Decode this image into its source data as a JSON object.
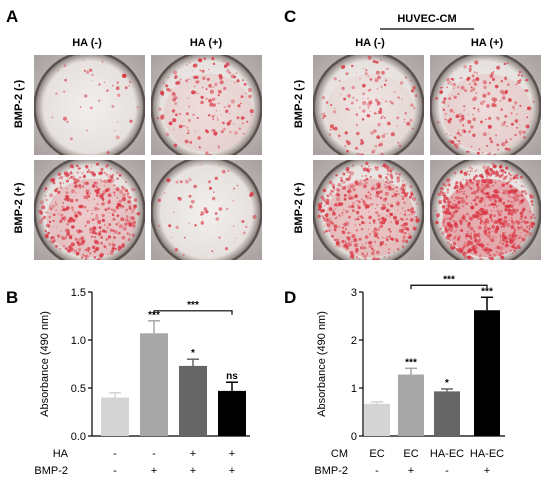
{
  "panels": {
    "A": "A",
    "B": "B",
    "C": "C",
    "D": "D"
  },
  "photo_grid_A": {
    "col_headers": [
      "HA (-)",
      "HA (+)"
    ],
    "row_headers": [
      "BMP-2 (-)",
      "BMP-2 (+)"
    ]
  },
  "photo_grid_C": {
    "group_header": "HUVEC-CM",
    "col_headers": [
      "HA (-)",
      "HA (+)"
    ],
    "row_headers": [
      "BMP-2 (-)",
      "BMP-2 (+)"
    ]
  },
  "colors": {
    "stain_red": "#d9323f",
    "well_bg": "#ede9e6",
    "bar_light": "#d4d4d4",
    "bar_mid": "#a7a7a7",
    "bar_dark": "#666666",
    "bar_black": "#000000"
  },
  "chart_data": [
    {
      "type": "bar",
      "panel": "B",
      "ylabel": "Absorbance (490 nm)",
      "ylim": [
        0,
        1.5
      ],
      "yticks": [
        "0.0",
        "0.5",
        "1.0",
        "1.5"
      ],
      "values": [
        0.4,
        1.07,
        0.73,
        0.47
      ],
      "errors": [
        0.05,
        0.13,
        0.07,
        0.09
      ],
      "bar_colors": [
        "#d4d4d4",
        "#a7a7a7",
        "#666666",
        "#000000"
      ],
      "significance": [
        "",
        "***",
        "*",
        "ns"
      ],
      "bracket": {
        "from": 1,
        "to": 3,
        "label": "***"
      },
      "row_labels": [
        {
          "name": "HA",
          "values": [
            "-",
            "-",
            "+",
            "+"
          ]
        },
        {
          "name": "BMP-2",
          "values": [
            "-",
            "+",
            "+",
            "+"
          ]
        }
      ]
    },
    {
      "type": "bar",
      "panel": "D",
      "ylabel": "Absorbance (490 nm)",
      "ylim": [
        0,
        3
      ],
      "yticks": [
        "0",
        "1",
        "2",
        "3"
      ],
      "values": [
        0.67,
        1.28,
        0.93,
        2.62
      ],
      "errors": [
        0.04,
        0.13,
        0.05,
        0.27
      ],
      "bar_colors": [
        "#d4d4d4",
        "#a7a7a7",
        "#666666",
        "#000000"
      ],
      "significance": [
        "",
        "***",
        "*",
        "***"
      ],
      "bracket": {
        "from": 1,
        "to": 3,
        "label": "***"
      },
      "row_labels": [
        {
          "name": "CM",
          "values": [
            "EC",
            "EC",
            "HA-EC",
            "HA-EC"
          ]
        },
        {
          "name": "BMP-2",
          "values": [
            "-",
            "+",
            "-",
            "+"
          ]
        }
      ]
    }
  ]
}
